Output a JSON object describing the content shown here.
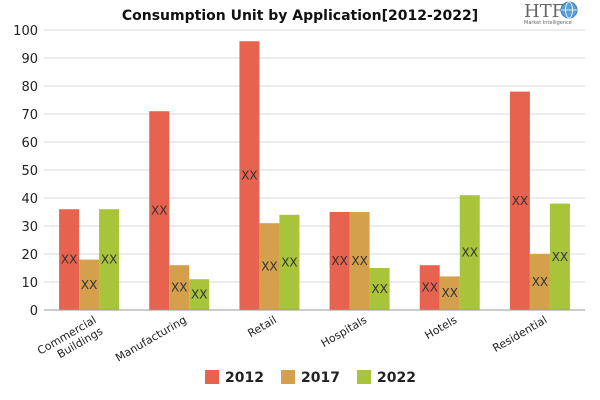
{
  "logo": {
    "mark": "HTF",
    "subtitle": "Market Intelligence",
    "icon": "globe-icon"
  },
  "chart_data": {
    "type": "bar",
    "title": "Consumption Unit by  Application[2012-2022]",
    "categories": [
      "Commercial Buildings",
      "Manufacturing",
      "Retail",
      "Hospitals",
      "Hotels",
      "Residential"
    ],
    "series": [
      {
        "name": "2012",
        "color": "#e8634f",
        "values": [
          36,
          71,
          96,
          35,
          16,
          78
        ]
      },
      {
        "name": "2017",
        "color": "#d4a04b",
        "values": [
          18,
          16,
          31,
          35,
          12,
          20
        ]
      },
      {
        "name": "2022",
        "color": "#a8c43a",
        "values": [
          36,
          11,
          34,
          15,
          41,
          38
        ]
      }
    ],
    "data_label": "XX",
    "ylim": [
      0,
      100
    ],
    "yticks": [
      0,
      10,
      20,
      30,
      40,
      50,
      60,
      70,
      80,
      90,
      100
    ],
    "grid": true,
    "legend": "bottom",
    "xlabel": "",
    "ylabel": ""
  }
}
